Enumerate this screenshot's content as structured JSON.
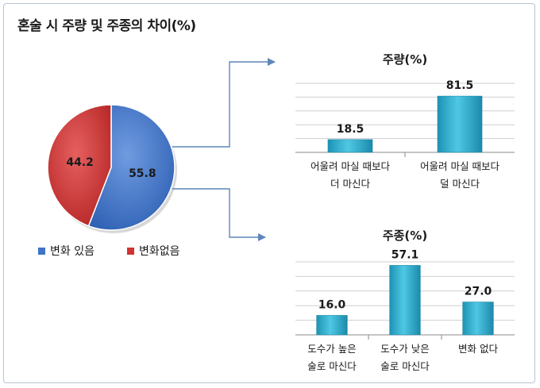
{
  "title": "혼술 시 주량 및 주종의 차이(%)",
  "chart_data": [
    {
      "type": "pie",
      "title": "",
      "slices": [
        {
          "label": "변화 있음",
          "value": 55.8,
          "color": "#3f73c6"
        },
        {
          "label": "변화없음",
          "value": 44.2,
          "color": "#cf3333"
        }
      ],
      "legend": "bottom"
    },
    {
      "type": "bar",
      "title": "주량(%)",
      "categories": [
        [
          "어울려 마실 때보다",
          "더 마신다"
        ],
        [
          "어울려 마실 때보다",
          "덜 마신다"
        ]
      ],
      "values": [
        18.5,
        81.5
      ],
      "ylim": [
        0,
        100
      ],
      "grid": true,
      "color": "#2fb0cf"
    },
    {
      "type": "bar",
      "title": "주종(%)",
      "categories": [
        [
          "도수가 높은",
          "술로 마신다"
        ],
        [
          "도수가 낮은",
          "술로 마신다"
        ],
        [
          "변화 없다"
        ]
      ],
      "values": [
        16.0,
        57.1,
        27.0
      ],
      "ylim": [
        0,
        60
      ],
      "grid": true,
      "color": "#2fb0cf"
    }
  ]
}
